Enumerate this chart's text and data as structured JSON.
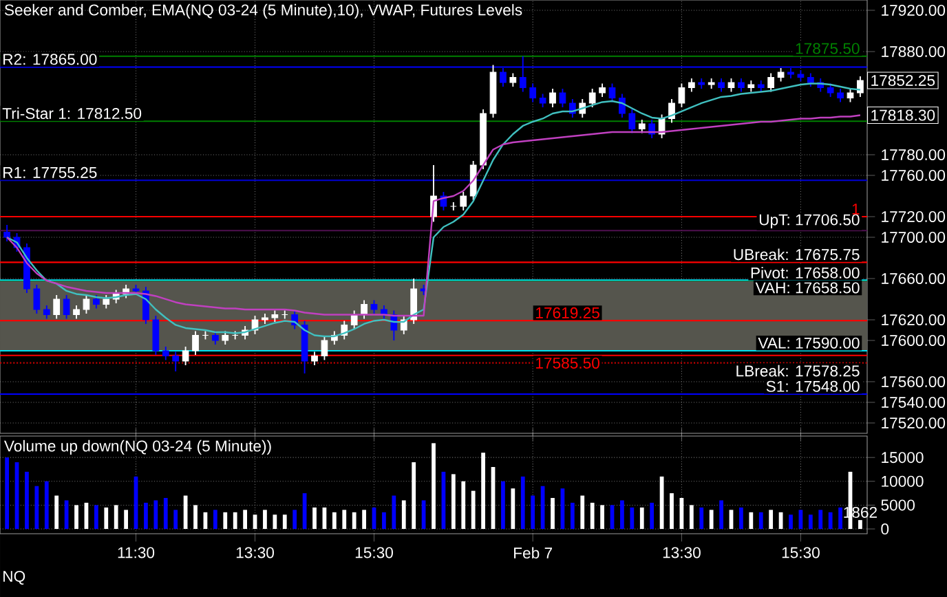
{
  "chart_data": [
    {
      "type": "candlestick",
      "title": "Seeker and Comber, EMA(NQ 03-24 (5 Minute),10), VWAP, Futures Levels",
      "categories": [
        null,
        null,
        null,
        null,
        null,
        null,
        null,
        null,
        null,
        null,
        null,
        null,
        null,
        null,
        null,
        null,
        null,
        null,
        null,
        null,
        null,
        null,
        null,
        null,
        null,
        null,
        null,
        null,
        null,
        null,
        null,
        null,
        null,
        null,
        null,
        null,
        null,
        null,
        null,
        null,
        null,
        null,
        null,
        null,
        null,
        null,
        null,
        null,
        null,
        null,
        null,
        null,
        null,
        null,
        null,
        null,
        null,
        null,
        null,
        null,
        null,
        null,
        null,
        null,
        null,
        null,
        null,
        null,
        null,
        null,
        null,
        null,
        null,
        null,
        null,
        null,
        null,
        null,
        null,
        null,
        null,
        null,
        null,
        null,
        null,
        null,
        null
      ],
      "ohlc": [
        [
          17705,
          17712,
          17696,
          17700
        ],
        [
          17700,
          17704,
          17686,
          17690
        ],
        [
          17690,
          17694,
          17646,
          17650
        ],
        [
          17650,
          17654,
          17626,
          17630
        ],
        [
          17630,
          17634,
          17621,
          17625
        ],
        [
          17625,
          17644,
          17621,
          17640
        ],
        [
          17640,
          17644,
          17621,
          17625
        ],
        [
          17625,
          17634,
          17621,
          17630
        ],
        [
          17630,
          17644,
          17626,
          17640
        ],
        [
          17640,
          17644,
          17631,
          17635
        ],
        [
          17635,
          17644,
          17631,
          17640
        ],
        [
          17640,
          17649,
          17636,
          17645
        ],
        [
          17645,
          17654,
          17641,
          17650
        ],
        [
          17650,
          17654,
          17644,
          17648
        ],
        [
          17648,
          17652,
          17616,
          17620
        ],
        [
          17620,
          17624,
          17586,
          17590
        ],
        [
          17590,
          17594,
          17581,
          17585
        ],
        [
          17585,
          17589,
          17570,
          17580
        ],
        [
          17580,
          17594,
          17576,
          17590
        ],
        [
          17590,
          17609,
          17586,
          17605
        ],
        [
          17605,
          17609,
          17601,
          17605
        ],
        [
          17605,
          17609,
          17596,
          17600
        ],
        [
          17600,
          17609,
          17596,
          17605
        ],
        [
          17605,
          17609,
          17601,
          17605
        ],
        [
          17605,
          17614,
          17601,
          17610
        ],
        [
          17610,
          17624,
          17606,
          17620
        ],
        [
          17620,
          17626,
          17616,
          17622
        ],
        [
          17622,
          17629,
          17618,
          17625
        ],
        [
          17625,
          17629,
          17621,
          17625
        ],
        [
          17625,
          17629,
          17611,
          17615
        ],
        [
          17615,
          17619,
          17568,
          17580
        ],
        [
          17580,
          17589,
          17576,
          17585
        ],
        [
          17585,
          17604,
          17581,
          17600
        ],
        [
          17600,
          17609,
          17596,
          17605
        ],
        [
          17605,
          17619,
          17601,
          17615
        ],
        [
          17615,
          17629,
          17611,
          17625
        ],
        [
          17625,
          17639,
          17621,
          17635
        ],
        [
          17635,
          17639,
          17626,
          17630
        ],
        [
          17630,
          17634,
          17621,
          17625
        ],
        [
          17625,
          17629,
          17600,
          17610
        ],
        [
          17610,
          17624,
          17606,
          17620
        ],
        [
          17620,
          17660,
          17616,
          17650
        ],
        [
          17650,
          17654,
          17644,
          17648
        ],
        [
          17720,
          17770,
          17715,
          17740
        ],
        [
          17740,
          17744,
          17726,
          17730
        ],
        [
          17730,
          17734,
          17726,
          17730
        ],
        [
          17730,
          17744,
          17726,
          17740
        ],
        [
          17740,
          17774,
          17736,
          17770
        ],
        [
          17770,
          17824,
          17766,
          17820
        ],
        [
          17820,
          17867,
          17816,
          17860
        ],
        [
          17860,
          17864,
          17846,
          17850
        ],
        [
          17850,
          17859,
          17846,
          17855
        ],
        [
          17855,
          17875.5,
          17841,
          17845
        ],
        [
          17845,
          17849,
          17831,
          17835
        ],
        [
          17835,
          17839,
          17826,
          17830
        ],
        [
          17830,
          17844,
          17826,
          17840
        ],
        [
          17840,
          17844,
          17826,
          17830
        ],
        [
          17830,
          17834,
          17816,
          17820
        ],
        [
          17820,
          17834,
          17816,
          17830
        ],
        [
          17830,
          17844,
          17826,
          17840
        ],
        [
          17840,
          17849,
          17836,
          17845
        ],
        [
          17845,
          17849,
          17831,
          17835
        ],
        [
          17835,
          17839,
          17816,
          17820
        ],
        [
          17820,
          17824,
          17801,
          17805
        ],
        [
          17805,
          17814,
          17801,
          17810
        ],
        [
          17810,
          17814,
          17796,
          17800
        ],
        [
          17800,
          17819,
          17796,
          17815
        ],
        [
          17815,
          17834,
          17811,
          17830
        ],
        [
          17830,
          17849,
          17826,
          17845
        ],
        [
          17845,
          17854,
          17841,
          17850
        ],
        [
          17850,
          17854,
          17844,
          17848
        ],
        [
          17848,
          17854,
          17844,
          17850
        ],
        [
          17850,
          17854,
          17841,
          17845
        ],
        [
          17845,
          17854,
          17841,
          17850
        ],
        [
          17850,
          17854,
          17841,
          17845
        ],
        [
          17845,
          17852,
          17841,
          17848
        ],
        [
          17848,
          17852,
          17841,
          17845
        ],
        [
          17845,
          17859,
          17841,
          17855
        ],
        [
          17855,
          17864,
          17851,
          17860
        ],
        [
          17860,
          17864,
          17854,
          17858
        ],
        [
          17858,
          17862,
          17851,
          17855
        ],
        [
          17855,
          17859,
          17846,
          17850
        ],
        [
          17850,
          17854,
          17841,
          17845
        ],
        [
          17845,
          17849,
          17836,
          17840
        ],
        [
          17840,
          17844,
          17831,
          17835
        ],
        [
          17835,
          17844,
          17831,
          17840
        ],
        [
          17840,
          17856,
          17836,
          17852
        ]
      ],
      "colors": [
        "#0000ff",
        "#0000ff",
        "#0000ff",
        "#0000ff",
        "#0000ff",
        "#ffffff",
        "#0000ff",
        "#ffffff",
        "#ffffff",
        "#0000ff",
        "#ffffff",
        "#ffffff",
        "#ffffff",
        "#0000ff",
        "#0000ff",
        "#0000ff",
        "#0000ff",
        "#0000ff",
        "#ffffff",
        "#ffffff",
        "#ffffff",
        "#0000ff",
        "#ffffff",
        "#ffffff",
        "#ffffff",
        "#ffffff",
        "#ffffff",
        "#ffffff",
        "#ffffff",
        "#0000ff",
        "#0000ff",
        "#ffffff",
        "#ffffff",
        "#ffffff",
        "#ffffff",
        "#ffffff",
        "#ffffff",
        "#0000ff",
        "#0000ff",
        "#0000ff",
        "#ffffff",
        "#ffffff",
        "#0000ff",
        "#ffffff",
        "#0000ff",
        "#ffffff",
        "#ffffff",
        "#ffffff",
        "#ffffff",
        "#ffffff",
        "#0000ff",
        "#ffffff",
        "#0000ff",
        "#0000ff",
        "#0000ff",
        "#ffffff",
        "#0000ff",
        "#0000ff",
        "#ffffff",
        "#ffffff",
        "#ffffff",
        "#0000ff",
        "#0000ff",
        "#0000ff",
        "#ffffff",
        "#0000ff",
        "#ffffff",
        "#ffffff",
        "#ffffff",
        "#ffffff",
        "#0000ff",
        "#ffffff",
        "#0000ff",
        "#ffffff",
        "#0000ff",
        "#ffffff",
        "#0000ff",
        "#ffffff",
        "#ffffff",
        "#0000ff",
        "#0000ff",
        "#0000ff",
        "#0000ff",
        "#0000ff",
        "#0000ff",
        "#ffffff",
        "#ffffff"
      ],
      "series": [
        {
          "type": "line",
          "color": "#40c0c0",
          "values": [
            17700,
            17695,
            17680,
            17668,
            17658,
            17655,
            17648,
            17645,
            17644,
            17642,
            17641,
            17642,
            17644,
            17645,
            17640,
            17630,
            17622,
            17615,
            17612,
            17611,
            17610,
            17608,
            17608,
            17607,
            17608,
            17611,
            17614,
            17617,
            17619,
            17618,
            17610,
            17605,
            17604,
            17604,
            17607,
            17611,
            17616,
            17619,
            17620,
            17618,
            17618,
            17625,
            17630,
            17700,
            17710,
            17715,
            17722,
            17735,
            17755,
            17775,
            17790,
            17800,
            17808,
            17812,
            17815,
            17820,
            17822,
            17822,
            17825,
            17828,
            17831,
            17832,
            17830,
            17825,
            17820,
            17816,
            17815,
            17818,
            17822,
            17826,
            17830,
            17833,
            17836,
            17837,
            17839,
            17840,
            17841,
            17842,
            17844,
            17846,
            17848,
            17849,
            17849,
            17848,
            17846,
            17844,
            17843
          ]
        },
        {
          "type": "line",
          "color": "#c040c0",
          "values": [
            17700,
            17690,
            17675,
            17665,
            17658,
            17655,
            17652,
            17650,
            17648,
            17647,
            17646,
            17646,
            17646,
            17646,
            17645,
            17643,
            17640,
            17637,
            17635,
            17634,
            17633,
            17632,
            17631,
            17631,
            17630,
            17630,
            17630,
            17630,
            17630,
            17629,
            17627,
            17626,
            17625,
            17625,
            17625,
            17625,
            17625,
            17625,
            17625,
            17624,
            17624,
            17624,
            17624,
            17735,
            17738,
            17740,
            17745,
            17755,
            17770,
            17785,
            17790,
            17792,
            17793,
            17794,
            17795,
            17796,
            17797,
            17798,
            17799,
            17800,
            17801,
            17802,
            17802,
            17802,
            17802,
            17802,
            17802,
            17803,
            17804,
            17805,
            17806,
            17807,
            17808,
            17809,
            17810,
            17811,
            17812,
            17812,
            17813,
            17814,
            17815,
            17815,
            17816,
            17816,
            17817,
            17817,
            17818.3
          ]
        }
      ],
      "ylim": [
        17510,
        17930
      ],
      "yticks": [
        {
          "value": 17920,
          "label": "17920.00"
        },
        {
          "value": 17880,
          "label": "17880.00"
        },
        {
          "value": 17780,
          "label": "17780.00"
        },
        {
          "value": 17760,
          "label": "17760.00"
        },
        {
          "value": 17720,
          "label": "17720.00"
        },
        {
          "value": 17700,
          "label": "17700.00"
        },
        {
          "value": 17660,
          "label": "17660.00"
        },
        {
          "value": 17620,
          "label": "17620.00"
        },
        {
          "value": 17600,
          "label": "17600.00"
        },
        {
          "value": 17560,
          "label": "17560.00"
        },
        {
          "value": 17540,
          "label": "17540.00"
        },
        {
          "value": 17520,
          "label": "17520.00"
        }
      ],
      "grid": true,
      "tick_labels": "y",
      "bands": [
        {
          "axis": "y",
          "from": 17590,
          "to": 17658.5,
          "color": "#55554d"
        }
      ],
      "ref_lines": [
        {
          "axis": "y",
          "value": 17865,
          "label": "R2: 17865.00",
          "color": "#0000ff"
        },
        {
          "axis": "y",
          "value": 17812.5,
          "label": "Tri-Star 1: 17812.50",
          "color": "#008000"
        },
        {
          "axis": "y",
          "value": 17755.25,
          "label": "R1: 17755.25",
          "color": "#0000c0"
        },
        {
          "axis": "y",
          "value": 17706.5,
          "label": "UpT: 17706.50",
          "color": "#501050"
        },
        {
          "axis": "y",
          "value": 17675.75,
          "label": "UBreak: 17675.75",
          "color": "#ff0000"
        },
        {
          "axis": "y",
          "value": 17658,
          "label": "Pivot: 17658.00",
          "color": "#006000"
        },
        {
          "axis": "y",
          "value": 17658.5,
          "label": "VAH: 17658.50",
          "color": "#00e0f0"
        },
        {
          "axis": "y",
          "value": 17590,
          "label": "VAL: 17590.00",
          "color": "#00e0f0"
        },
        {
          "axis": "y",
          "value": 17578.25,
          "label": "LBreak: 17578.25",
          "color": "#c00000",
          "line_style": "dotted"
        },
        {
          "axis": "y",
          "value": 17548,
          "label": "S1: 17548.00",
          "color": "#0000ff"
        },
        {
          "axis": "y",
          "value": 17720,
          "color": "#ff0000"
        },
        {
          "axis": "y",
          "value": 17875.5,
          "label": "17875.50",
          "color": "#008000"
        },
        {
          "axis": "y",
          "value": 17619.25,
          "label": "17619.25",
          "color": "#ff0000"
        },
        {
          "axis": "y",
          "value": 17585.5,
          "label": "17585.50",
          "color": "#ff0000"
        }
      ],
      "annotations": [
        "17852.25",
        "17818.30",
        {
          "text": "1",
          "y": 17720
        }
      ]
    },
    {
      "type": "bar",
      "title": "Volume up down(NQ 03-24 (5 Minute))",
      "categories": [
        null,
        null,
        null,
        null,
        null,
        null,
        null,
        null,
        null,
        null,
        null,
        null,
        null,
        "11:30",
        null,
        null,
        null,
        null,
        null,
        null,
        null,
        null,
        null,
        null,
        null,
        "13:30",
        null,
        null,
        null,
        null,
        null,
        null,
        null,
        null,
        null,
        null,
        null,
        "15:30",
        null,
        null,
        null,
        null,
        null,
        null,
        null,
        null,
        null,
        null,
        null,
        null,
        null,
        null,
        null,
        "Feb 7",
        null,
        null,
        null,
        null,
        null,
        null,
        null,
        null,
        null,
        null,
        null,
        null,
        null,
        null,
        "13:30",
        null,
        null,
        null,
        null,
        null,
        null,
        null,
        null,
        null,
        null,
        null,
        "15:30",
        null,
        null,
        null,
        null,
        null,
        null
      ],
      "values": [
        15000,
        14000,
        12000,
        9000,
        10000,
        7000,
        6000,
        5000,
        5500,
        5000,
        4500,
        5000,
        4000,
        11000,
        5500,
        6000,
        6500,
        4000,
        7000,
        5000,
        3500,
        4000,
        3500,
        3500,
        4000,
        3000,
        4000,
        3000,
        3000,
        4000,
        7500,
        4500,
        4500,
        3500,
        4000,
        3500,
        4000,
        4500,
        3500,
        7000,
        6000,
        14000,
        6000,
        18000,
        12000,
        11500,
        10000,
        8000,
        16000,
        13000,
        10000,
        8500,
        11000,
        7000,
        9000,
        6500,
        8500,
        5500,
        7000,
        5500,
        5000,
        5000,
        6000,
        4500,
        4500,
        5500,
        11000,
        7500,
        6500,
        5000,
        4500,
        4000,
        6000,
        4000,
        4500,
        3500,
        3500,
        4000,
        3500,
        3000,
        4000,
        3000,
        4000,
        3500,
        4500,
        12000,
        1862
      ],
      "colors": [
        "#0000ff",
        "#0000ff",
        "#0000ff",
        "#0000ff",
        "#0000ff",
        "#ffffff",
        "#0000ff",
        "#ffffff",
        "#ffffff",
        "#0000ff",
        "#ffffff",
        "#ffffff",
        "#ffffff",
        "#0000ff",
        "#0000ff",
        "#0000ff",
        "#0000ff",
        "#0000ff",
        "#ffffff",
        "#ffffff",
        "#ffffff",
        "#0000ff",
        "#ffffff",
        "#ffffff",
        "#ffffff",
        "#ffffff",
        "#ffffff",
        "#ffffff",
        "#ffffff",
        "#0000ff",
        "#0000ff",
        "#ffffff",
        "#ffffff",
        "#ffffff",
        "#ffffff",
        "#ffffff",
        "#ffffff",
        "#0000ff",
        "#0000ff",
        "#0000ff",
        "#ffffff",
        "#ffffff",
        "#0000ff",
        "#ffffff",
        "#0000ff",
        "#ffffff",
        "#ffffff",
        "#ffffff",
        "#ffffff",
        "#ffffff",
        "#0000ff",
        "#ffffff",
        "#0000ff",
        "#0000ff",
        "#0000ff",
        "#ffffff",
        "#0000ff",
        "#0000ff",
        "#ffffff",
        "#ffffff",
        "#ffffff",
        "#0000ff",
        "#0000ff",
        "#0000ff",
        "#ffffff",
        "#0000ff",
        "#ffffff",
        "#ffffff",
        "#ffffff",
        "#ffffff",
        "#0000ff",
        "#ffffff",
        "#0000ff",
        "#ffffff",
        "#0000ff",
        "#ffffff",
        "#0000ff",
        "#ffffff",
        "#ffffff",
        "#0000ff",
        "#0000ff",
        "#0000ff",
        "#0000ff",
        "#0000ff",
        "#0000ff",
        "#ffffff",
        "#ffffff"
      ],
      "value_labels": [
        null,
        null,
        null,
        null,
        null,
        null,
        null,
        null,
        null,
        null,
        null,
        null,
        null,
        null,
        null,
        null,
        null,
        null,
        null,
        null,
        null,
        null,
        null,
        null,
        null,
        null,
        null,
        null,
        null,
        null,
        null,
        null,
        null,
        null,
        null,
        null,
        null,
        null,
        null,
        null,
        null,
        null,
        null,
        null,
        null,
        null,
        null,
        null,
        null,
        null,
        null,
        null,
        null,
        null,
        null,
        null,
        null,
        null,
        null,
        null,
        null,
        null,
        null,
        null,
        null,
        null,
        null,
        null,
        null,
        null,
        null,
        null,
        null,
        null,
        null,
        null,
        null,
        null,
        null,
        null,
        null,
        null,
        null,
        null,
        null,
        null,
        "1862"
      ],
      "ylim": [
        -1000,
        19500
      ],
      "yticks": [
        0,
        5000,
        10000,
        15000
      ],
      "grid": true,
      "annotations": [
        "NQ"
      ]
    }
  ]
}
